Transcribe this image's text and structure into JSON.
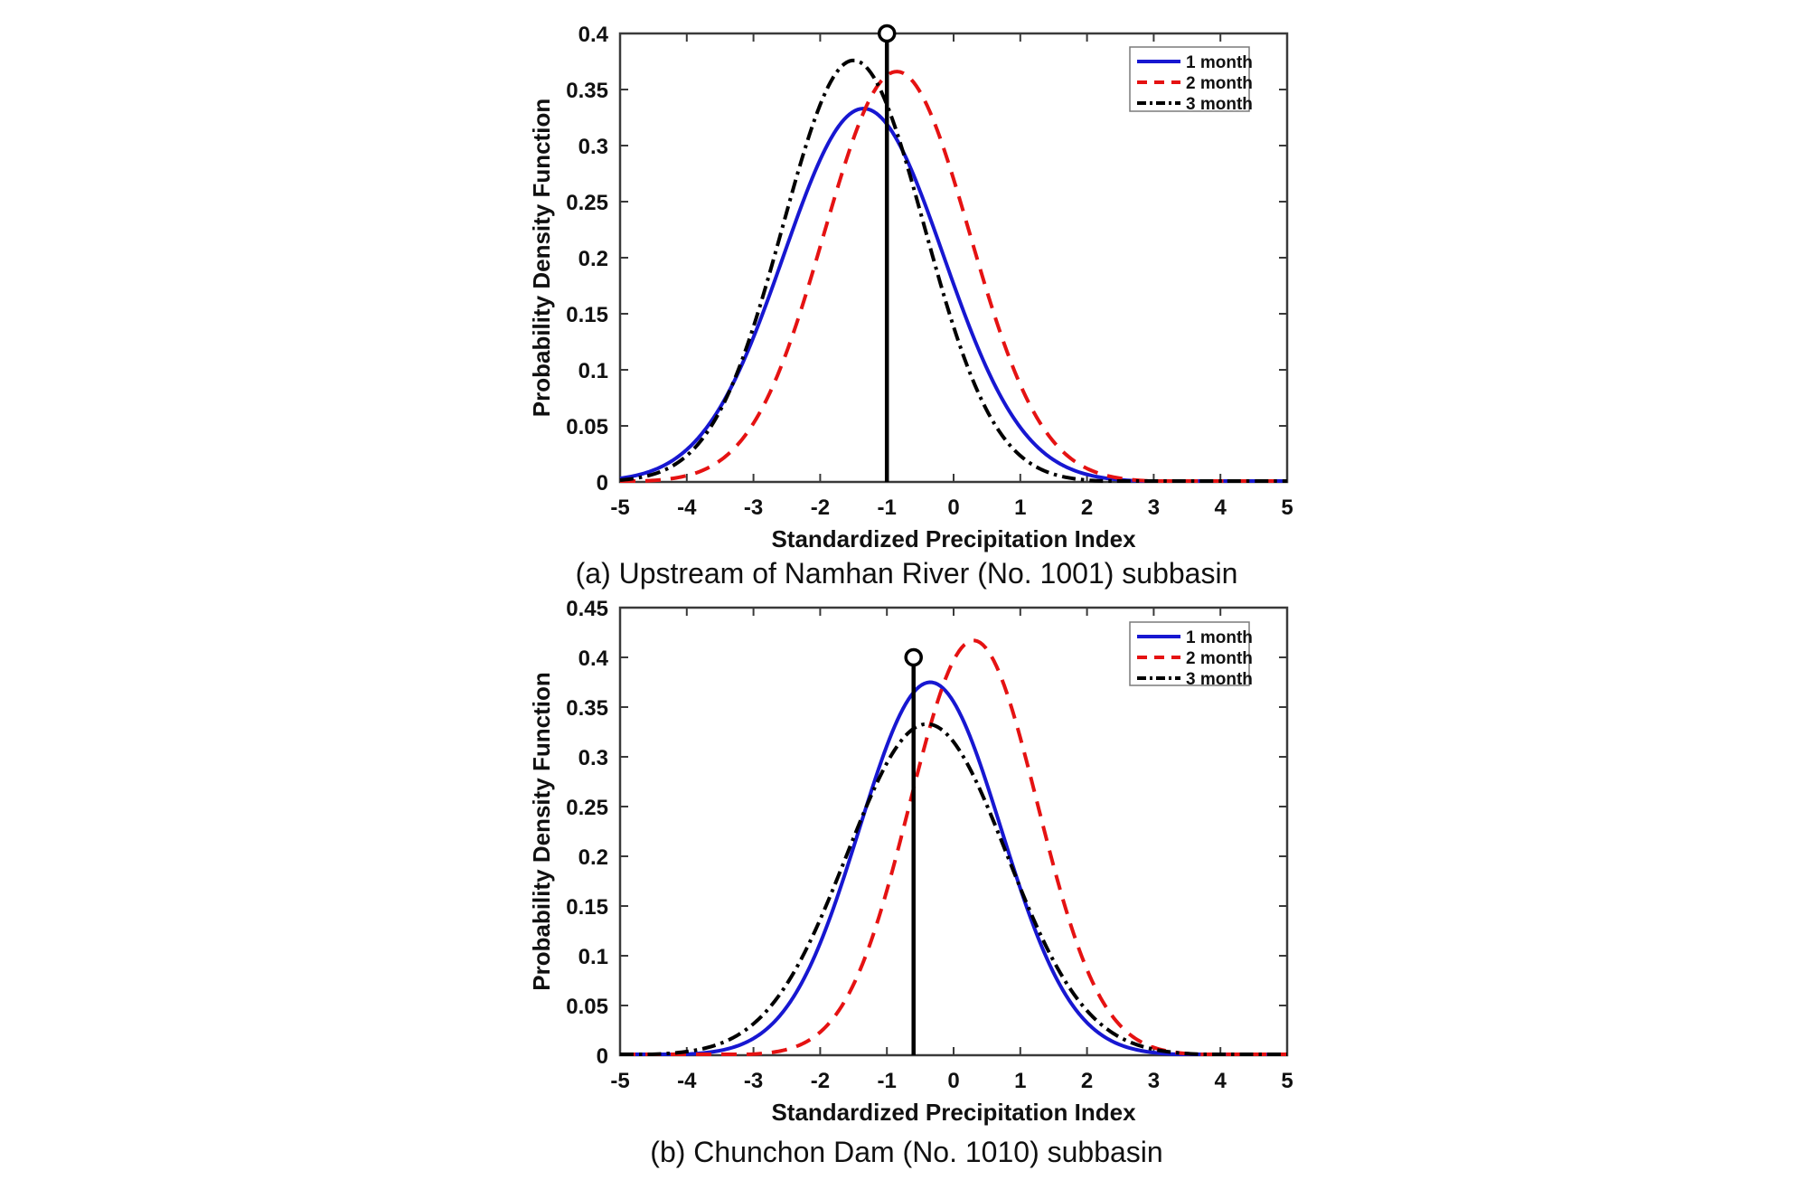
{
  "figure": {
    "background": "#ffffff",
    "axis_color": "#3a3a3a",
    "tick_label_color": "#111111",
    "legend_border_color": "#7a7a7a"
  },
  "chart_data": [
    {
      "id": "a",
      "type": "line",
      "caption": "(a) Upstream of Namhan River (No. 1001) subbasin",
      "title": "",
      "xlabel": "Standardized Precipitation Index",
      "ylabel": "Probability Density Function",
      "xlim": [
        -5,
        5
      ],
      "ylim": [
        0,
        0.4
      ],
      "xtick_step": 1,
      "ytick_step": 0.05,
      "grid": false,
      "legend_position": "top-right",
      "series": [
        {
          "name": "1 month",
          "color": "#1717d1",
          "line_style": "solid",
          "curve": "gaussian",
          "mean": -1.35,
          "sigma": 1.198,
          "peak": 0.333,
          "x_samples": [
            -5,
            -4,
            -3,
            -2,
            -1,
            0,
            1,
            2,
            3,
            4,
            5
          ],
          "y_samples": [
            0.003,
            0.029,
            0.129,
            0.287,
            0.319,
            0.177,
            0.049,
            0.007,
            0.001,
            0,
            0
          ]
        },
        {
          "name": "2 month",
          "color": "#e51212",
          "line_style": "dashed",
          "curve": "gaussian",
          "mean": -0.85,
          "sigma": 1.09,
          "peak": 0.366,
          "x_samples": [
            -5,
            -4,
            -3,
            -2,
            -1,
            0,
            1,
            2,
            3,
            4,
            5
          ],
          "y_samples": [
            0,
            0.006,
            0.052,
            0.21,
            0.363,
            0.27,
            0.087,
            0.012,
            0.001,
            0,
            0
          ]
        },
        {
          "name": "3 month",
          "color": "#000000",
          "line_style": "dash-dot",
          "curve": "gaussian",
          "mean": -1.5,
          "sigma": 1.061,
          "peak": 0.376,
          "x_samples": [
            -5,
            -4,
            -3,
            -2,
            -1,
            0,
            1,
            2,
            3,
            4,
            5
          ],
          "y_samples": [
            0.002,
            0.023,
            0.138,
            0.337,
            0.337,
            0.138,
            0.023,
            0.002,
            0,
            0,
            0
          ]
        }
      ],
      "event_marker": {
        "x": -1,
        "y": 0.4,
        "marker": "open-circle",
        "color": "#000000"
      }
    },
    {
      "id": "b",
      "type": "line",
      "caption": "(b) Chunchon Dam (No. 1010) subbasin",
      "title": "",
      "xlabel": "Standardized Precipitation Index",
      "ylabel": "Probability Density Function",
      "xlim": [
        -5,
        5
      ],
      "ylim": [
        0,
        0.45
      ],
      "xtick_step": 1,
      "ytick_step": 0.05,
      "grid": false,
      "legend_position": "top-right",
      "series": [
        {
          "name": "1 month",
          "color": "#1717d1",
          "line_style": "solid",
          "curve": "gaussian",
          "mean": -0.35,
          "sigma": 1.064,
          "peak": 0.375,
          "x_samples": [
            -5,
            -4,
            -3,
            -2,
            -1,
            0,
            1,
            2,
            3,
            4,
            5
          ],
          "y_samples": [
            0,
            0.001,
            0.017,
            0.113,
            0.311,
            0.355,
            0.168,
            0.033,
            0.003,
            0,
            0
          ]
        },
        {
          "name": "2 month",
          "color": "#e51212",
          "line_style": "dashed",
          "curve": "gaussian",
          "mean": 0.3,
          "sigma": 0.957,
          "peak": 0.417,
          "x_samples": [
            -5,
            -4,
            -3,
            -2,
            -1,
            0,
            1,
            2,
            3,
            4,
            5
          ],
          "y_samples": [
            0,
            0,
            0.001,
            0.023,
            0.166,
            0.397,
            0.319,
            0.086,
            0.008,
            0,
            0
          ]
        },
        {
          "name": "3 month",
          "color": "#000000",
          "line_style": "dash-dot",
          "curve": "gaussian",
          "mean": -0.4,
          "sigma": 1.198,
          "peak": 0.333,
          "x_samples": [
            -5,
            -4,
            -3,
            -2,
            -1,
            0,
            1,
            2,
            3,
            4,
            5
          ],
          "y_samples": [
            0,
            0.004,
            0.032,
            0.137,
            0.294,
            0.315,
            0.168,
            0.045,
            0.006,
            0,
            0
          ]
        }
      ],
      "event_marker": {
        "x": -0.6,
        "y": 0.4,
        "marker": "open-circle",
        "color": "#000000"
      }
    }
  ]
}
